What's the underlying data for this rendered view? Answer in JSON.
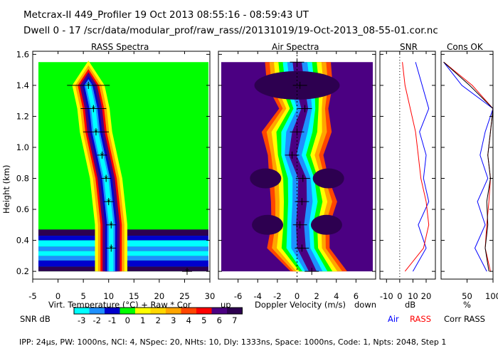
{
  "header": {
    "line1": "Metcrax-II  449_Profiler  19 Oct 2013  08:55:16 - 08:59:43 UT",
    "line2": "Dwell  0 - 17   /scr/data/modular_prof/raw_rass//20131019/19-Oct-2013_08-55-01.cor.nc"
  },
  "footer": "IPP: 24μs,  PW: 1000ns,  NCI: 4,  NSpec: 20, NHts: 10,  Dly: 1333ns,  Space: 1000ns,  Code: 1,  Npts: 2048,  Step 1",
  "colorbar": {
    "label": "SNR dB",
    "ticks": [
      "-3",
      "-2",
      "-1",
      "0",
      "1",
      "2",
      "3",
      "4",
      "5",
      "6",
      "7"
    ],
    "colors": [
      "#00ffff",
      "#1e90ff",
      "#0000cd",
      "#00ff00",
      "#ffff00",
      "#ffd700",
      "#ffa500",
      "#ff4500",
      "#ff0000",
      "#4b0082",
      "#2d0050"
    ]
  },
  "chart_data": [
    {
      "type": "heatmap",
      "title": "RASS Spectra",
      "xlabel": "Virt. Temperature (°C)  + Raw  * Cor",
      "ylabel": "Height (km)",
      "xlim": [
        -5,
        30
      ],
      "ylim": [
        0.15,
        1.62
      ],
      "x_ticks": [
        "-5",
        "0",
        "5",
        "10",
        "15",
        "20",
        "25",
        "30"
      ],
      "y_ticks": [
        "0.2",
        "0.4",
        "0.6",
        "0.8",
        "1.0",
        "1.2",
        "1.4",
        "1.6"
      ],
      "background_color": "#00ff00",
      "ridge": {
        "height": [
          0.35,
          0.5,
          0.65,
          0.8,
          0.95,
          1.1,
          1.25,
          1.4
        ],
        "temperature": [
          10.5,
          10.5,
          10,
          9.5,
          8.5,
          7.5,
          7,
          6
        ]
      },
      "series": [
        {
          "name": "Raw",
          "height": [
            0.2,
            0.35,
            0.5,
            0.65,
            0.8,
            0.95,
            1.1,
            1.25,
            1.4
          ],
          "temperature": [
            25.5,
            10.5,
            10.5,
            10,
            9.5,
            8.7,
            7.5,
            7,
            6
          ]
        },
        {
          "name": "Cor",
          "height": [
            0.2,
            0.35,
            0.5,
            0.65,
            0.8,
            0.95,
            1.1,
            1.25,
            1.4
          ],
          "temperature": [
            25.5,
            10.5,
            10.5,
            10,
            9.5,
            8.7,
            7.5,
            7,
            6
          ]
        }
      ]
    },
    {
      "type": "heatmap",
      "title": "Air Spectra",
      "xlabel": "Doppler Velocity (m/s)",
      "x_left_label": "up",
      "x_right_label": "down",
      "xlim": [
        -8,
        8
      ],
      "ylim": [
        0.15,
        1.62
      ],
      "x_ticks": [
        "-6",
        "-4",
        "-2",
        "0",
        "2",
        "4",
        "6"
      ],
      "peaks": {
        "height": [
          0.2,
          0.35,
          0.5,
          0.65,
          0.8,
          0.95,
          1.1,
          1.25,
          1.4,
          1.55
        ],
        "velocity": [
          1.5,
          0.5,
          0.3,
          0.5,
          0.6,
          -0.5,
          0,
          0.8,
          0.3,
          0
        ]
      }
    },
    {
      "type": "line",
      "title": "SNR",
      "xlabel": "dB",
      "xlim": [
        -15,
        27
      ],
      "ylim": [
        0.15,
        1.62
      ],
      "x_ticks": [
        "-10",
        "0",
        "10",
        "20"
      ],
      "legend": [
        "Air",
        "RASS"
      ],
      "series": [
        {
          "name": "Air",
          "color": "#0000ff",
          "height": [
            0.2,
            0.35,
            0.5,
            0.65,
            0.8,
            0.95,
            1.1,
            1.25,
            1.4,
            1.55
          ],
          "values": [
            10,
            20,
            14,
            22,
            18,
            20,
            15,
            22,
            17,
            12
          ]
        },
        {
          "name": "RASS",
          "color": "#ff0000",
          "height": [
            0.2,
            0.35,
            0.5,
            0.65,
            0.8,
            0.95,
            1.1,
            1.25,
            1.4,
            1.55
          ],
          "values": [
            4,
            18,
            22,
            20,
            16,
            14,
            12,
            8,
            4,
            2
          ]
        }
      ]
    },
    {
      "type": "line",
      "title": "Cons OK",
      "xlabel": "%",
      "xlim": [
        0,
        100
      ],
      "ylim": [
        0.15,
        1.62
      ],
      "x_ticks": [
        "50",
        "100"
      ],
      "legend": [
        "Corr RASS"
      ],
      "series": [
        {
          "name": "Air",
          "color": "#0000ff",
          "height": [
            0.2,
            0.35,
            0.5,
            0.65,
            0.8,
            0.95,
            1.1,
            1.25,
            1.4,
            1.55
          ],
          "values": [
            88,
            65,
            85,
            70,
            90,
            75,
            85,
            100,
            40,
            5
          ]
        },
        {
          "name": "RASS",
          "color": "#ff0000",
          "height": [
            0.2,
            0.35,
            0.5,
            0.65,
            0.8,
            0.95,
            1.1,
            1.25,
            1.4,
            1.55
          ],
          "values": [
            95,
            85,
            88,
            92,
            95,
            90,
            95,
            100,
            60,
            5
          ]
        },
        {
          "name": "Corr RASS",
          "color": "#000000",
          "height": [
            0.2,
            0.35,
            0.5,
            0.65,
            0.8,
            0.95,
            1.1,
            1.25,
            1.4,
            1.55
          ],
          "values": [
            92,
            85,
            90,
            88,
            95,
            90,
            95,
            100,
            55,
            5
          ]
        }
      ]
    }
  ]
}
